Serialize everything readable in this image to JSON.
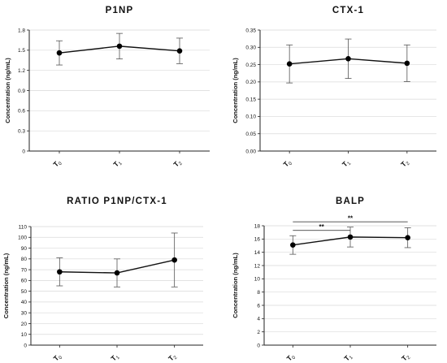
{
  "chart_data": [
    {
      "type": "line",
      "title": "P1NP",
      "ylabel": "Concentration (ng/mL)",
      "ylim": [
        0,
        1.8
      ],
      "yticks": [
        "0",
        "0.3",
        "0.6",
        "0.9",
        "1.2",
        "1.5",
        "1.8"
      ],
      "categories": [
        {
          "main": "T",
          "sub": "0"
        },
        {
          "main": "T",
          "sub": "1"
        },
        {
          "main": "T",
          "sub": "2"
        }
      ],
      "series": [
        {
          "values": [
            1.46,
            1.56,
            1.49
          ],
          "error": [
            0.18,
            0.19,
            0.19
          ]
        }
      ],
      "grid": "horizontal",
      "significance": []
    },
    {
      "type": "line",
      "title": "CTX-1",
      "ylabel": "Concentration (ng/mL)",
      "ylim": [
        0,
        0.35
      ],
      "yticks": [
        "0.00",
        "0.05",
        "0.10",
        "0.15",
        "0.20",
        "0.25",
        "0.30",
        "0.35"
      ],
      "categories": [
        {
          "main": "T",
          "sub": "0"
        },
        {
          "main": "T",
          "sub": "1"
        },
        {
          "main": "T",
          "sub": "2"
        }
      ],
      "series": [
        {
          "values": [
            0.252,
            0.267,
            0.254
          ],
          "error": [
            0.055,
            0.057,
            0.053
          ]
        }
      ],
      "grid": "horizontal",
      "significance": []
    },
    {
      "type": "line",
      "title": "RATIO P1NP/CTX-1",
      "ylabel": "Concentration (ng/mL)",
      "ylim": [
        0,
        110
      ],
      "yticks": [
        "0",
        "10",
        "20",
        "30",
        "40",
        "50",
        "60",
        "70",
        "80",
        "90",
        "100",
        "110"
      ],
      "categories": [
        {
          "main": "T",
          "sub": "0"
        },
        {
          "main": "T",
          "sub": "1"
        },
        {
          "main": "T",
          "sub": "2"
        }
      ],
      "series": [
        {
          "values": [
            68,
            67,
            79
          ],
          "error": [
            13,
            13,
            25
          ]
        }
      ],
      "grid": "horizontal",
      "significance": []
    },
    {
      "type": "line",
      "title": "BALP",
      "ylabel": "Concentration (ng/mL)",
      "ylim": [
        0,
        18
      ],
      "yticks": [
        "0",
        "2",
        "4",
        "6",
        "8",
        "10",
        "12",
        "14",
        "16",
        "18"
      ],
      "categories": [
        {
          "main": "T",
          "sub": "0"
        },
        {
          "main": "T",
          "sub": "1"
        },
        {
          "main": "T",
          "sub": "2"
        }
      ],
      "series": [
        {
          "values": [
            15.1,
            16.3,
            16.2
          ],
          "error": [
            1.4,
            1.5,
            1.5
          ]
        }
      ],
      "grid": "horizontal",
      "significance": [
        {
          "from": 0,
          "to": 1,
          "label": "**",
          "y": 17.3
        },
        {
          "from": 0,
          "to": 2,
          "label": "**",
          "y": 18.6
        }
      ]
    }
  ]
}
